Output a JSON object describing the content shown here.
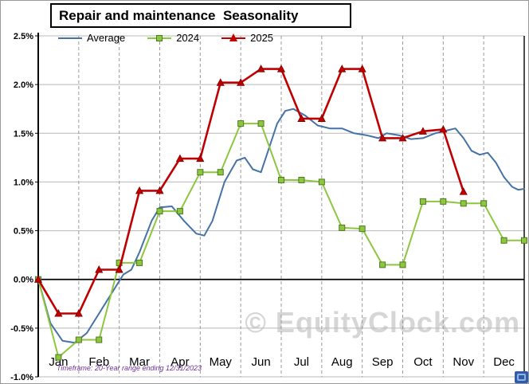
{
  "title": "Repair and maintenance  Seasonality",
  "legend": [
    {
      "label": "Average",
      "color": "#4572A7",
      "marker": "line"
    },
    {
      "label": "2024",
      "color": "#8DC63F",
      "marker": "square",
      "marker_border": "#4D7A1F"
    },
    {
      "label": "2025",
      "color": "#C00000",
      "marker": "triangle",
      "marker_border": "#7F0000"
    }
  ],
  "footnote": "Timeframe: 20-Year range ending 12/31/2023",
  "watermark": "© EquityClock.com",
  "chart_data": {
    "type": "line",
    "title": "Repair and maintenance Seasonality",
    "x_axis": {
      "labels": [
        "Jan",
        "Feb",
        "Mar",
        "Apr",
        "May",
        "Jun",
        "Jul",
        "Aug",
        "Sep",
        "Oct",
        "Nov",
        "Dec"
      ],
      "range": [
        0,
        12
      ],
      "gridlines": "dashed"
    },
    "y_axis": {
      "min": -1.0,
      "max": 2.5,
      "format": "percent",
      "gridlines": "solid",
      "ticks": [
        {
          "value": 2.5,
          "label": "2.5%"
        },
        {
          "value": 2.0,
          "label": "2.0%"
        },
        {
          "value": 1.5,
          "label": "1.5%"
        },
        {
          "value": 1.0,
          "label": "1.0%"
        },
        {
          "value": 0.5,
          "label": "0.5%"
        },
        {
          "value": 0.0,
          "label": "0.0%"
        },
        {
          "value": -0.5,
          "label": "-0.5%"
        },
        {
          "value": -1.0,
          "label": "-1.0%"
        }
      ]
    },
    "legend_position": "top-left",
    "series": [
      {
        "name": "Average",
        "color": "#4572A7",
        "marker": "none",
        "points": [
          [
            0,
            0
          ],
          [
            0.3,
            -0.45
          ],
          [
            0.6,
            -0.63
          ],
          [
            0.9,
            -0.65
          ],
          [
            1.2,
            -0.55
          ],
          [
            1.5,
            -0.35
          ],
          [
            1.8,
            -0.15
          ],
          [
            2.1,
            0.05
          ],
          [
            2.3,
            0.1
          ],
          [
            2.5,
            0.28
          ],
          [
            2.8,
            0.6
          ],
          [
            3,
            0.74
          ],
          [
            3.3,
            0.75
          ],
          [
            3.6,
            0.6
          ],
          [
            3.9,
            0.47
          ],
          [
            4.1,
            0.45
          ],
          [
            4.3,
            0.6
          ],
          [
            4.6,
            1.0
          ],
          [
            4.9,
            1.22
          ],
          [
            5.1,
            1.25
          ],
          [
            5.3,
            1.13
          ],
          [
            5.5,
            1.1
          ],
          [
            5.7,
            1.35
          ],
          [
            5.9,
            1.6
          ],
          [
            6.1,
            1.73
          ],
          [
            6.3,
            1.75
          ],
          [
            6.6,
            1.68
          ],
          [
            6.9,
            1.58
          ],
          [
            7.2,
            1.55
          ],
          [
            7.5,
            1.55
          ],
          [
            7.8,
            1.5
          ],
          [
            8.1,
            1.48
          ],
          [
            8.4,
            1.45
          ],
          [
            8.6,
            1.5
          ],
          [
            8.9,
            1.48
          ],
          [
            9.2,
            1.44
          ],
          [
            9.5,
            1.45
          ],
          [
            9.8,
            1.5
          ],
          [
            10.1,
            1.53
          ],
          [
            10.3,
            1.55
          ],
          [
            10.5,
            1.45
          ],
          [
            10.7,
            1.32
          ],
          [
            10.9,
            1.28
          ],
          [
            11.1,
            1.3
          ],
          [
            11.3,
            1.2
          ],
          [
            11.5,
            1.05
          ],
          [
            11.7,
            0.95
          ],
          [
            11.85,
            0.92
          ],
          [
            12,
            0.93
          ]
        ]
      },
      {
        "name": "2024",
        "color": "#8DC63F",
        "marker": "square",
        "marker_border": "#4D7A1F",
        "points": [
          [
            0,
            0
          ],
          [
            0.5,
            -0.8
          ],
          [
            1,
            -0.62
          ],
          [
            1.5,
            -0.62
          ],
          [
            2,
            0.17
          ],
          [
            2.5,
            0.17
          ],
          [
            3,
            0.7
          ],
          [
            3.5,
            0.7
          ],
          [
            4,
            1.1
          ],
          [
            4.5,
            1.1
          ],
          [
            5,
            1.6
          ],
          [
            5.5,
            1.6
          ],
          [
            6,
            1.02
          ],
          [
            6.5,
            1.02
          ],
          [
            7,
            1.0
          ],
          [
            7.5,
            0.53
          ],
          [
            8,
            0.52
          ],
          [
            8.5,
            0.15
          ],
          [
            9,
            0.15
          ],
          [
            9.5,
            0.8
          ],
          [
            10,
            0.8
          ],
          [
            10.5,
            0.78
          ],
          [
            11,
            0.78
          ],
          [
            11.5,
            0.4
          ],
          [
            12,
            0.4
          ]
        ]
      },
      {
        "name": "2025",
        "color": "#C00000",
        "marker": "triangle",
        "marker_border": "#7F0000",
        "points": [
          [
            0,
            0
          ],
          [
            0.5,
            -0.35
          ],
          [
            1,
            -0.35
          ],
          [
            1.5,
            0.1
          ],
          [
            2,
            0.1
          ],
          [
            2.5,
            0.91
          ],
          [
            3,
            0.91
          ],
          [
            3.5,
            1.24
          ],
          [
            4,
            1.24
          ],
          [
            4.5,
            2.02
          ],
          [
            5,
            2.02
          ],
          [
            5.5,
            2.16
          ],
          [
            6,
            2.16
          ],
          [
            6.5,
            1.65
          ],
          [
            7,
            1.65
          ],
          [
            7.5,
            2.16
          ],
          [
            8,
            2.16
          ],
          [
            8.5,
            1.45
          ],
          [
            9,
            1.45
          ],
          [
            9.5,
            1.52
          ],
          [
            10,
            1.54
          ],
          [
            10.5,
            0.9
          ]
        ]
      }
    ]
  }
}
